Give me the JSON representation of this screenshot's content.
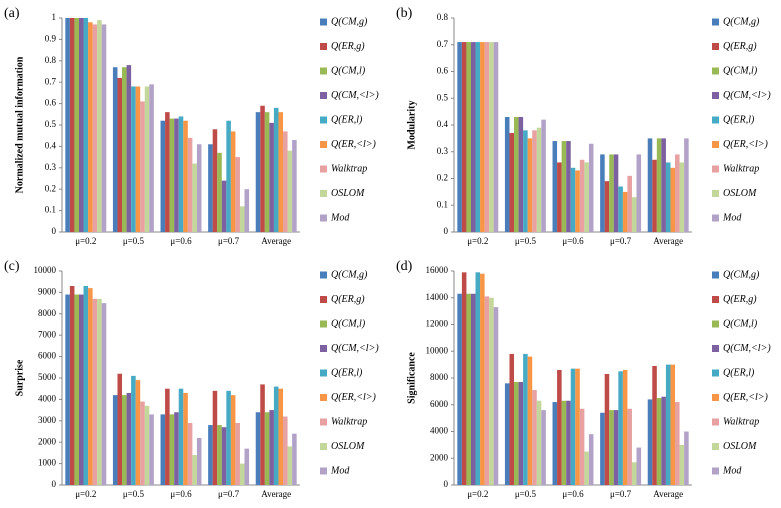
{
  "chart_data": [
    {
      "type": "bar",
      "label": "(a)",
      "y_label": "Normalized mutual information",
      "categories": [
        "μ=0.2",
        "μ=0.5",
        "μ=0.6",
        "μ=0.7",
        "Average"
      ],
      "ylim": [
        0,
        1
      ],
      "yticks": [
        0,
        0.1,
        0.2,
        0.3,
        0.4,
        0.5,
        0.6,
        0.7,
        0.8,
        0.9,
        1
      ],
      "series": [
        {
          "name": "Q(CM,g)",
          "color": "#4a7ebb",
          "values": [
            1,
            0.77,
            0.52,
            0.41,
            0.56
          ]
        },
        {
          "name": "Q(ER,g)",
          "color": "#be4b48",
          "values": [
            1,
            0.72,
            0.56,
            0.48,
            0.59
          ]
        },
        {
          "name": "Q(CM,l)",
          "color": "#98b954",
          "values": [
            1,
            0.77,
            0.53,
            0.37,
            0.56
          ]
        },
        {
          "name": "Q(CM,<l>)",
          "color": "#7d60a0",
          "values": [
            1,
            0.78,
            0.53,
            0.24,
            0.51
          ]
        },
        {
          "name": "Q(ER,l)",
          "color": "#46aac5",
          "values": [
            1,
            0.68,
            0.54,
            0.52,
            0.58
          ]
        },
        {
          "name": "Q(ER,<l>)",
          "color": "#f79646",
          "values": [
            0.98,
            0.68,
            0.52,
            0.47,
            0.56
          ]
        },
        {
          "name": "Walktrap",
          "color": "#e6a1a0",
          "values": [
            0.97,
            0.61,
            0.44,
            0.35,
            0.47
          ]
        },
        {
          "name": "OSLOM",
          "color": "#c4d79b",
          "values": [
            0.99,
            0.68,
            0.32,
            0.12,
            0.38
          ]
        },
        {
          "name": "Mod",
          "color": "#b3a2c7",
          "values": [
            0.97,
            0.69,
            0.41,
            0.2,
            0.43
          ]
        }
      ]
    },
    {
      "type": "bar",
      "label": "(b)",
      "y_label": "Modularity",
      "categories": [
        "μ=0.2",
        "μ=0.5",
        "μ=0.6",
        "μ=0.7",
        "Average"
      ],
      "ylim": [
        0,
        0.8
      ],
      "yticks": [
        0,
        0.1,
        0.2,
        0.3,
        0.4,
        0.5,
        0.6,
        0.7,
        0.8
      ],
      "series": [
        {
          "name": "Q(CM,g)",
          "color": "#4a7ebb",
          "values": [
            0.71,
            0.43,
            0.34,
            0.29,
            0.35
          ]
        },
        {
          "name": "Q(ER,g)",
          "color": "#be4b48",
          "values": [
            0.71,
            0.37,
            0.26,
            0.19,
            0.27
          ]
        },
        {
          "name": "Q(CM,l)",
          "color": "#98b954",
          "values": [
            0.71,
            0.43,
            0.34,
            0.29,
            0.35
          ]
        },
        {
          "name": "Q(CM,<l>)",
          "color": "#7d60a0",
          "values": [
            0.71,
            0.43,
            0.34,
            0.29,
            0.35
          ]
        },
        {
          "name": "Q(ER,l)",
          "color": "#46aac5",
          "values": [
            0.71,
            0.38,
            0.24,
            0.17,
            0.26
          ]
        },
        {
          "name": "Q(ER,<l>)",
          "color": "#f79646",
          "values": [
            0.71,
            0.35,
            0.23,
            0.15,
            0.24
          ]
        },
        {
          "name": "Walktrap",
          "color": "#e6a1a0",
          "values": [
            0.71,
            0.38,
            0.27,
            0.21,
            0.29
          ]
        },
        {
          "name": "OSLOM",
          "color": "#c4d79b",
          "values": [
            0.71,
            0.39,
            0.26,
            0.13,
            0.26
          ]
        },
        {
          "name": "Mod",
          "color": "#b3a2c7",
          "values": [
            0.71,
            0.42,
            0.33,
            0.29,
            0.35
          ]
        }
      ]
    },
    {
      "type": "bar",
      "label": "(c)",
      "y_label": "Surprise",
      "categories": [
        "μ=0.2",
        "μ=0.5",
        "μ=0.6",
        "μ=0.7",
        "Average"
      ],
      "ylim": [
        0,
        10000
      ],
      "yticks": [
        0,
        1000,
        2000,
        3000,
        4000,
        5000,
        6000,
        7000,
        8000,
        9000,
        10000
      ],
      "series": [
        {
          "name": "Q(CM,g)",
          "color": "#4a7ebb",
          "values": [
            8900,
            4200,
            3300,
            2800,
            3400
          ]
        },
        {
          "name": "Q(ER,g)",
          "color": "#be4b48",
          "values": [
            9300,
            5200,
            4500,
            4400,
            4700
          ]
        },
        {
          "name": "Q(CM,l)",
          "color": "#98b954",
          "values": [
            8900,
            4200,
            3300,
            2800,
            3400
          ]
        },
        {
          "name": "Q(CM,<l>)",
          "color": "#7d60a0",
          "values": [
            8900,
            4300,
            3400,
            2700,
            3500
          ]
        },
        {
          "name": "Q(ER,l)",
          "color": "#46aac5",
          "values": [
            9300,
            5100,
            4500,
            4400,
            4600
          ]
        },
        {
          "name": "Q(ER,<l>)",
          "color": "#f79646",
          "values": [
            9200,
            4900,
            4300,
            4200,
            4500
          ]
        },
        {
          "name": "Walktrap",
          "color": "#e6a1a0",
          "values": [
            8700,
            3900,
            2900,
            2900,
            3200
          ]
        },
        {
          "name": "OSLOM",
          "color": "#c4d79b",
          "values": [
            8700,
            3700,
            1400,
            1000,
            1800
          ]
        },
        {
          "name": "Mod",
          "color": "#b3a2c7",
          "values": [
            8500,
            3300,
            2200,
            1700,
            2400
          ]
        }
      ]
    },
    {
      "type": "bar",
      "label": "(d)",
      "y_label": "Significance",
      "categories": [
        "μ=0.2",
        "μ=0.5",
        "μ=0.6",
        "μ=0.7",
        "Average"
      ],
      "ylim": [
        0,
        16000
      ],
      "yticks": [
        0,
        2000,
        4000,
        6000,
        8000,
        10000,
        12000,
        14000,
        16000
      ],
      "series": [
        {
          "name": "Q(CM,g)",
          "color": "#4a7ebb",
          "values": [
            14300,
            7600,
            6200,
            5400,
            6400
          ]
        },
        {
          "name": "Q(ER,g)",
          "color": "#be4b48",
          "values": [
            15900,
            9800,
            8600,
            8300,
            8900
          ]
        },
        {
          "name": "Q(CM,l)",
          "color": "#98b954",
          "values": [
            14300,
            7700,
            6300,
            5600,
            6500
          ]
        },
        {
          "name": "Q(CM,<l>)",
          "color": "#7d60a0",
          "values": [
            14300,
            7700,
            6300,
            5600,
            6600
          ]
        },
        {
          "name": "Q(ER,l)",
          "color": "#46aac5",
          "values": [
            15900,
            9800,
            8700,
            8500,
            9000
          ]
        },
        {
          "name": "Q(ER,<l>)",
          "color": "#f79646",
          "values": [
            15800,
            9600,
            8700,
            8600,
            9000
          ]
        },
        {
          "name": "Walktrap",
          "color": "#e6a1a0",
          "values": [
            14100,
            7100,
            5700,
            5700,
            6200
          ]
        },
        {
          "name": "OSLOM",
          "color": "#c4d79b",
          "values": [
            14000,
            6300,
            2500,
            1700,
            3000
          ]
        },
        {
          "name": "Mod",
          "color": "#b3a2c7",
          "values": [
            13300,
            5600,
            3800,
            2800,
            4000
          ]
        }
      ]
    }
  ]
}
